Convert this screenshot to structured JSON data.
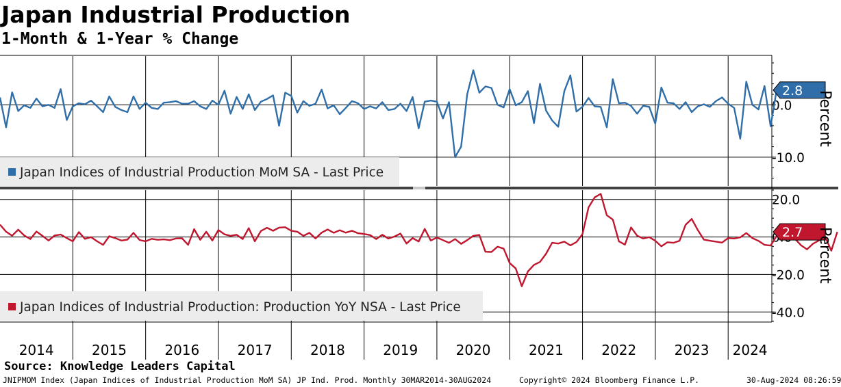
{
  "header": {
    "title": "Japan Industrial Production",
    "subtitle": "1-Month & 1-Year % Change"
  },
  "colors": {
    "mom": "#2f6ea8",
    "yoy": "#c0172f",
    "grid": "#000000",
    "legend_bg": "#ececec"
  },
  "chart_data": [
    {
      "type": "line",
      "title": "Japan Indices of Industrial Production MoM SA - Last Price",
      "legend": "Japan Indices of Industrial Production MoM SA - Last Price",
      "ylabel": "Percent",
      "ylim": [
        -15.5,
        9.3
      ],
      "yticks": [
        0,
        -10
      ],
      "ytick_labels": [
        "0.0",
        "-10.0"
      ],
      "last_value": 2.8,
      "last_value_label": "2.8",
      "x_start": 2014.0,
      "x_step": 0.08333,
      "values": [
        1.4,
        -4.3,
        2.4,
        -1.2,
        -0.1,
        -0.6,
        1.2,
        -0.3,
        0.0,
        -0.6,
        3.0,
        -2.9,
        -0.3,
        0.3,
        0.1,
        0.8,
        -0.3,
        -1.4,
        1.6,
        -0.4,
        -1.0,
        -1.4,
        1.6,
        -0.8,
        0.4,
        -0.6,
        -0.8,
        0.4,
        0.5,
        0.7,
        0.2,
        0.2,
        0.7,
        -0.3,
        -0.8,
        0.8,
        0.0,
        2.7,
        -1.7,
        1.5,
        -0.8,
        2.0,
        -1.0,
        0.6,
        1.1,
        1.8,
        -4.0,
        2.3,
        1.7,
        -1.5,
        0.7,
        -0.2,
        0.2,
        2.9,
        -0.7,
        -0.1,
        -1.8,
        -0.6,
        0.7,
        0.3,
        -0.8,
        -0.3,
        -0.7,
        0.5,
        -1.0,
        -0.8,
        0.2,
        -1.2,
        1.5,
        -4.5,
        0.6,
        0.8,
        0.6,
        -2.6,
        0.5,
        -10.0,
        -8.0,
        2.0,
        6.6,
        2.3,
        3.5,
        3.2,
        0.0,
        -0.5,
        3.0,
        -0.1,
        0.5,
        2.6,
        -3.5,
        4.0,
        -1.1,
        -3.0,
        -4.2,
        2.6,
        5.6,
        -1.3,
        -0.4,
        1.3,
        -0.3,
        -0.4,
        -4.3,
        4.9,
        0.3,
        0.4,
        -0.2,
        -1.7,
        -0.2,
        -0.4,
        -3.6,
        3.3,
        0.4,
        0.3,
        -0.8,
        0.5,
        -1.4,
        -0.3,
        0.1,
        -0.4,
        0.7,
        1.4,
        0.2,
        -0.6,
        -6.5,
        4.4,
        0.0,
        -0.9,
        3.6,
        -4.1,
        2.8
      ],
      "series_name": "MoM"
    },
    {
      "type": "line",
      "title": "Japan Indices of Industrial Production: Production YoY NSA - Last Price",
      "legend": "Japan Indices of Industrial Production: Production YoY NSA - Last Price",
      "ylabel": "Percent",
      "ylim": [
        -45,
        25
      ],
      "yticks": [
        20,
        0,
        -20,
        -40
      ],
      "ytick_labels": [
        "20.0",
        "0.0",
        "-20.0",
        "-40.0"
      ],
      "last_value": 2.7,
      "last_value_label": "2.7",
      "x_start": 2014.0,
      "x_step": 0.08333,
      "values": [
        6.6,
        2.8,
        0.7,
        3.9,
        0.8,
        -1.1,
        2.9,
        0.6,
        -1.9,
        0.8,
        1.3,
        -0.6,
        -2.3,
        2.6,
        -1.0,
        -0.1,
        -2.3,
        -4.2,
        0.4,
        -0.6,
        -1.9,
        -1.4,
        2.2,
        -1.6,
        -2.3,
        -1.0,
        -1.5,
        -1.3,
        -1.7,
        -0.8,
        -0.7,
        -4.2,
        4.2,
        -1.5,
        2.8,
        -1.9,
        3.7,
        1.4,
        0.6,
        1.2,
        -1.1,
        4.7,
        -2.3,
        3.2,
        4.9,
        3.3,
        5.0,
        5.2,
        3.3,
        2.8,
        0.6,
        2.2,
        -0.8,
        2.3,
        4.0,
        2.2,
        3.6,
        2.3,
        3.3,
        2.0,
        1.6,
        1.0,
        -1.1,
        1.2,
        -0.8,
        0.2,
        1.8,
        -3.5,
        -0.6,
        -2.4,
        4.3,
        -1.9,
        -0.3,
        -1.7,
        -3.1,
        -1.1,
        -3.7,
        -1.7,
        0.6,
        1.1,
        -7.9,
        -8.0,
        -5.2,
        -6.2,
        -13.9,
        -16.8,
        -26.3,
        -18.4,
        -14.9,
        -13.3,
        -8.9,
        -3.1,
        -3.5,
        -2.5,
        -4.5,
        -2.7,
        1.5,
        15.8,
        21.1,
        23.0,
        11.6,
        9.3,
        -2.3,
        -4.1,
        5.1,
        0.7,
        -0.8,
        -0.1,
        -2.0,
        -5.0,
        -2.8,
        -3.1,
        -2.0,
        6.5,
        9.6,
        3.7,
        -1.4,
        -2.0,
        -2.5,
        -3.0,
        -0.6,
        -0.8,
        -0.2,
        2.1,
        -0.6,
        -2.1,
        -4.2,
        -4.6,
        0.5,
        -0.9,
        -0.8,
        -0.9,
        -4.4,
        -6.6,
        -3.6,
        -1.8,
        0.1,
        -7.3,
        2.7
      ],
      "series_name": "YoY"
    }
  ],
  "x_axis": {
    "years": [
      "2014",
      "2015",
      "2016",
      "2017",
      "2018",
      "2019",
      "2020",
      "2021",
      "2022",
      "2023",
      "2024"
    ]
  },
  "footer": {
    "source": "Source: Knowledge Leaders Capital",
    "ticker_info": "JNIPMOM Index (Japan Indices of Industrial Production MoM SA) JP Ind. Prod.  Monthly 30MAR2014-30AUG2024",
    "copyright": "Copyright© 2024 Bloomberg Finance L.P.",
    "timestamp": "30-Aug-2024 08:26:59"
  }
}
